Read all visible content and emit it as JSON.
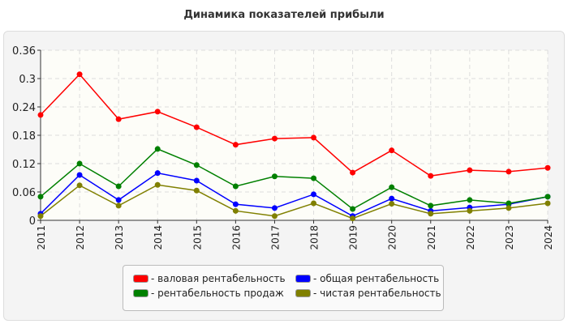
{
  "chart_data": {
    "type": "line",
    "title": "Динамика показателей прибыли",
    "x": [
      "2011",
      "2012",
      "2013",
      "2014",
      "2015",
      "2016",
      "2017",
      "2018",
      "2019",
      "2020",
      "2021",
      "2022",
      "2023",
      "2024"
    ],
    "ylim": [
      0,
      0.36
    ],
    "yticks": [
      "0",
      "0.06",
      "0.12",
      "0.18",
      "0.24",
      "0.3",
      "0.36"
    ],
    "grid": true,
    "legend_position": "bottom",
    "series": [
      {
        "name": "- валовая рентабельность",
        "color": "#ff0000",
        "values": [
          0.223,
          0.309,
          0.214,
          0.23,
          0.197,
          0.16,
          0.173,
          0.175,
          0.101,
          0.148,
          0.094,
          0.106,
          0.103,
          0.111
        ]
      },
      {
        "name": "- общая рентабельность",
        "color": "#0000ff",
        "values": [
          0.014,
          0.096,
          0.043,
          0.1,
          0.084,
          0.034,
          0.026,
          0.055,
          0.009,
          0.046,
          0.02,
          0.027,
          0.034,
          0.05
        ]
      },
      {
        "name": "- рентабельность продаж",
        "color": "#008000",
        "values": [
          0.05,
          0.12,
          0.072,
          0.151,
          0.117,
          0.072,
          0.093,
          0.089,
          0.024,
          0.07,
          0.031,
          0.043,
          0.036,
          0.05
        ]
      },
      {
        "name": "- чистая рентабельность",
        "color": "#808000",
        "values": [
          0.009,
          0.074,
          0.031,
          0.075,
          0.063,
          0.02,
          0.009,
          0.036,
          0.004,
          0.035,
          0.014,
          0.02,
          0.026,
          0.036
        ]
      }
    ]
  }
}
